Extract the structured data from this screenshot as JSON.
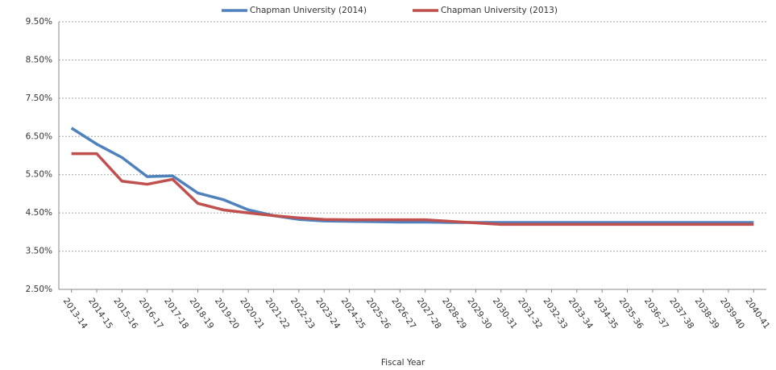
{
  "chart_data": {
    "type": "line",
    "x_label": "Fiscal Year",
    "categories": [
      "2013-14",
      "2014-15",
      "2015-16",
      "2016-17",
      "2017-18",
      "2018-19",
      "2019-20",
      "2020-21",
      "2021-22",
      "2022-23",
      "2023-24",
      "2024-25",
      "2025-26",
      "2026-27",
      "2027-28",
      "2028-29",
      "2029-30",
      "2030-31",
      "2031-32",
      "2032-33",
      "2033-34",
      "2034-35",
      "2035-36",
      "2036-37",
      "2037-38",
      "2038-39",
      "2039-40",
      "2040-41"
    ],
    "series": [
      {
        "name": "Chapman University (2014)",
        "color": "#4f81bd",
        "values": [
          6.72,
          6.3,
          5.95,
          5.45,
          5.47,
          5.02,
          4.85,
          4.58,
          4.43,
          4.33,
          4.29,
          4.28,
          4.27,
          4.26,
          4.26,
          4.25,
          4.25,
          4.25,
          4.25,
          4.25,
          4.25,
          4.25,
          4.25,
          4.25,
          4.25,
          4.25,
          4.25,
          4.25
        ]
      },
      {
        "name": "Chapman University (2013)",
        "color": "#c0504d",
        "values": [
          6.05,
          6.05,
          5.33,
          5.25,
          5.38,
          4.75,
          4.58,
          4.5,
          4.43,
          4.37,
          4.33,
          4.32,
          4.32,
          4.32,
          4.32,
          4.28,
          4.24,
          4.2,
          4.2,
          4.2,
          4.2,
          4.2,
          4.2,
          4.2,
          4.2,
          4.2,
          4.2,
          4.2
        ]
      }
    ],
    "ylim": [
      2.5,
      9.5
    ],
    "yticks": [
      {
        "value": 2.5,
        "label": "2.50%"
      },
      {
        "value": 3.5,
        "label": "3.50%"
      },
      {
        "value": 4.5,
        "label": "4.50%"
      },
      {
        "value": 5.5,
        "label": "5.50%"
      },
      {
        "value": 6.5,
        "label": "6.50%"
      },
      {
        "value": 7.5,
        "label": "7.50%"
      },
      {
        "value": 8.5,
        "label": "8.50%"
      },
      {
        "value": 9.5,
        "label": "9.50%"
      }
    ],
    "grid": true,
    "legend": "top"
  }
}
